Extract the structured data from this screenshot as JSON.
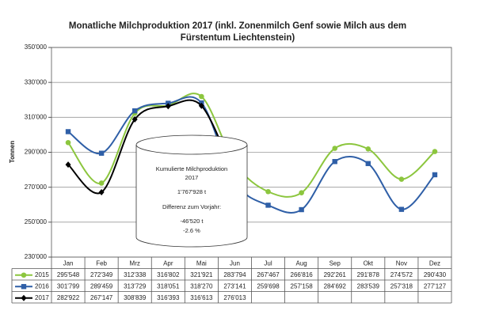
{
  "chart_data": {
    "type": "line",
    "title": [
      "Monatliche Milchproduktion 2017 (inkl. Zonenmilch Genf sowie Milch aus dem",
      "Fürstentum Liechtenstein)"
    ],
    "ylabel": "Tonnen",
    "categories": [
      "Jan",
      "Feb",
      "Mrz",
      "Apr",
      "Mai",
      "Jun",
      "Jul",
      "Aug",
      "Sep",
      "Okt",
      "Nov",
      "Dez"
    ],
    "ylim": [
      230000,
      350000
    ],
    "yticks": [
      {
        "value": 230000,
        "label": "230'000"
      },
      {
        "value": 250000,
        "label": "250'000"
      },
      {
        "value": 270000,
        "label": "270'000"
      },
      {
        "value": 290000,
        "label": "290'000"
      },
      {
        "value": 310000,
        "label": "310'000"
      },
      {
        "value": 330000,
        "label": "330'000"
      },
      {
        "value": 350000,
        "label": "350'000"
      }
    ],
    "grid": true,
    "series": [
      {
        "name": "2015",
        "color": "#8cc63e",
        "marker": "circle",
        "values": [
          295548,
          272349,
          312338,
          316802,
          321921,
          283794,
          267467,
          266816,
          292261,
          291878,
          274572,
          290430
        ],
        "value_labels": [
          "295'548",
          "272'349",
          "312'338",
          "316'802",
          "321'921",
          "283'794",
          "267'467",
          "266'816",
          "292'261",
          "291'878",
          "274'572",
          "290'430"
        ]
      },
      {
        "name": "2016",
        "color": "#2f5fa7",
        "marker": "square",
        "values": [
          301799,
          289459,
          313729,
          318051,
          318270,
          273141,
          259698,
          257158,
          284692,
          283539,
          257318,
          277127
        ],
        "value_labels": [
          "301'799",
          "289'459",
          "313'729",
          "318'051",
          "318'270",
          "273'141",
          "259'698",
          "257'158",
          "284'692",
          "283'539",
          "257'318",
          "277'127"
        ]
      },
      {
        "name": "2017",
        "color": "#000000",
        "marker": "diamond",
        "values": [
          282922,
          267147,
          308839,
          316393,
          316613,
          276013,
          null,
          null,
          null,
          null,
          null,
          null
        ],
        "value_labels": [
          "282'922",
          "267'147",
          "308'839",
          "316'393",
          "316'613",
          "276'013",
          null,
          null,
          null,
          null,
          null,
          null
        ]
      }
    ],
    "annotations": [
      "Kumulierte Milchproduktion",
      "2017",
      "1'767'928 t",
      "Differenz zum Vorjahr:",
      "-46'520 t",
      "-2.6 %"
    ]
  }
}
